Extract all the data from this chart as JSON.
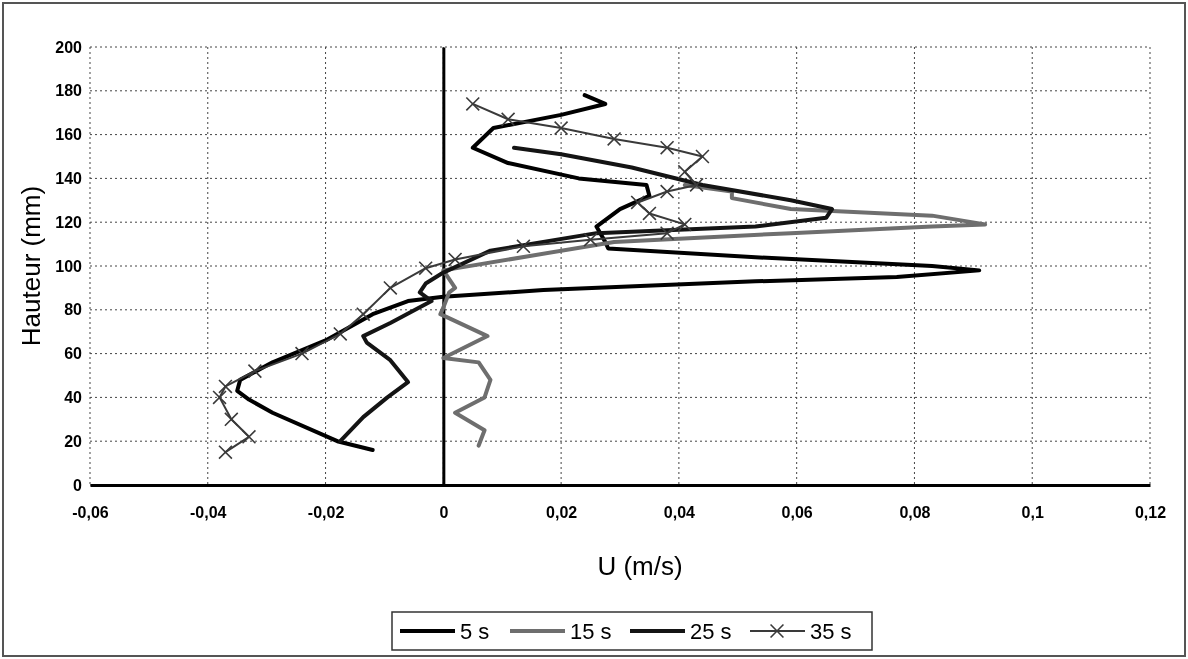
{
  "chart_data": {
    "type": "line",
    "xlabel": "U (m/s)",
    "ylabel": "Hauteur (mm)",
    "xlim": [
      -0.06,
      0.12
    ],
    "xticks": [
      {
        "value": -0.06,
        "label": "-0,06"
      },
      {
        "value": -0.04,
        "label": "-0,04"
      },
      {
        "value": -0.02,
        "label": "-0,02"
      },
      0,
      {
        "value": 0.02,
        "label": "0,02"
      },
      {
        "value": 0.04,
        "label": "0,04"
      },
      {
        "value": 0.06,
        "label": "0,06"
      },
      {
        "value": 0.08,
        "label": "0,08"
      },
      {
        "value": 0.1,
        "label": "0,1"
      },
      {
        "value": 0.12,
        "label": "0,12"
      }
    ],
    "ylim": [
      0,
      200
    ],
    "yticks": [
      0,
      20,
      40,
      60,
      80,
      100,
      120,
      140,
      160,
      180,
      200
    ],
    "grid": true,
    "legend": "bottom",
    "series": [
      {
        "name": "5 s",
        "color": "#000000",
        "marker": "none",
        "x": [
          -0.012,
          -0.018,
          -0.029,
          -0.033,
          -0.035,
          -0.0345,
          -0.029,
          -0.02,
          -0.012,
          -0.006,
          0,
          0.017,
          0.053,
          0.077,
          0.091,
          0.083,
          0.053,
          0.028,
          0.0275,
          0.026,
          0.03,
          0.035,
          0.0345,
          0.023,
          0.011,
          0.005,
          0.0085,
          0.02,
          0.0275,
          0.024
        ],
        "values": [
          16,
          20,
          33,
          39,
          43,
          48,
          56,
          66,
          78,
          84,
          86,
          89,
          93,
          95,
          98,
          100,
          104,
          108,
          111,
          118,
          126,
          132,
          137,
          140,
          147,
          154,
          163,
          169,
          174,
          178
        ]
      },
      {
        "name": "15 s",
        "color": "#6e6e6e",
        "marker": "none",
        "x": [
          0.006,
          0.007,
          0.002,
          0.007,
          0.008,
          0.006,
          0,
          0.0075,
          -0.0005,
          0,
          0.001,
          0.002,
          0,
          0.029,
          0.059,
          0.083,
          0.092,
          0.083,
          0.059,
          0.049,
          0.049,
          0.041
        ],
        "values": [
          18,
          25,
          33,
          40,
          48,
          56,
          58,
          68,
          78,
          81,
          88,
          90,
          98,
          111,
          115,
          118,
          119,
          123,
          126,
          131,
          134,
          137
        ]
      },
      {
        "name": "25 s",
        "color": "#141414",
        "marker": "none",
        "x": [
          -0.0175,
          -0.0136,
          -0.0095,
          -0.006,
          -0.009,
          -0.013,
          -0.0136,
          -0.009,
          -0.002,
          -0.004,
          -0.003,
          0,
          0.008,
          0.026,
          0.053,
          0.065,
          0.066,
          0.059,
          0.044,
          0.032,
          0.02,
          0.012
        ],
        "values": [
          20,
          31,
          40,
          47,
          57,
          65,
          68,
          74,
          84,
          88,
          92,
          97,
          107,
          115,
          118,
          122,
          126,
          130,
          137,
          145,
          151,
          154
        ]
      },
      {
        "name": "35 s",
        "color": "#3a3a3a",
        "marker": "cross",
        "x": [
          -0.037,
          -0.033,
          -0.036,
          -0.038,
          -0.037,
          -0.032,
          -0.024,
          -0.0175,
          -0.0136,
          -0.009,
          -0.003,
          0.002,
          0.0136,
          0.025,
          0.038,
          0.041,
          0.035,
          0.033,
          0.038,
          0.043,
          0.041,
          0.044,
          0.038,
          0.029,
          0.02,
          0.011,
          0.005
        ],
        "values": [
          15,
          22,
          30,
          40,
          45,
          52,
          60,
          69,
          78,
          90,
          99,
          103,
          109,
          112,
          115,
          119,
          124,
          129,
          134,
          137,
          143,
          150,
          154,
          158,
          163,
          167,
          174
        ]
      }
    ]
  }
}
